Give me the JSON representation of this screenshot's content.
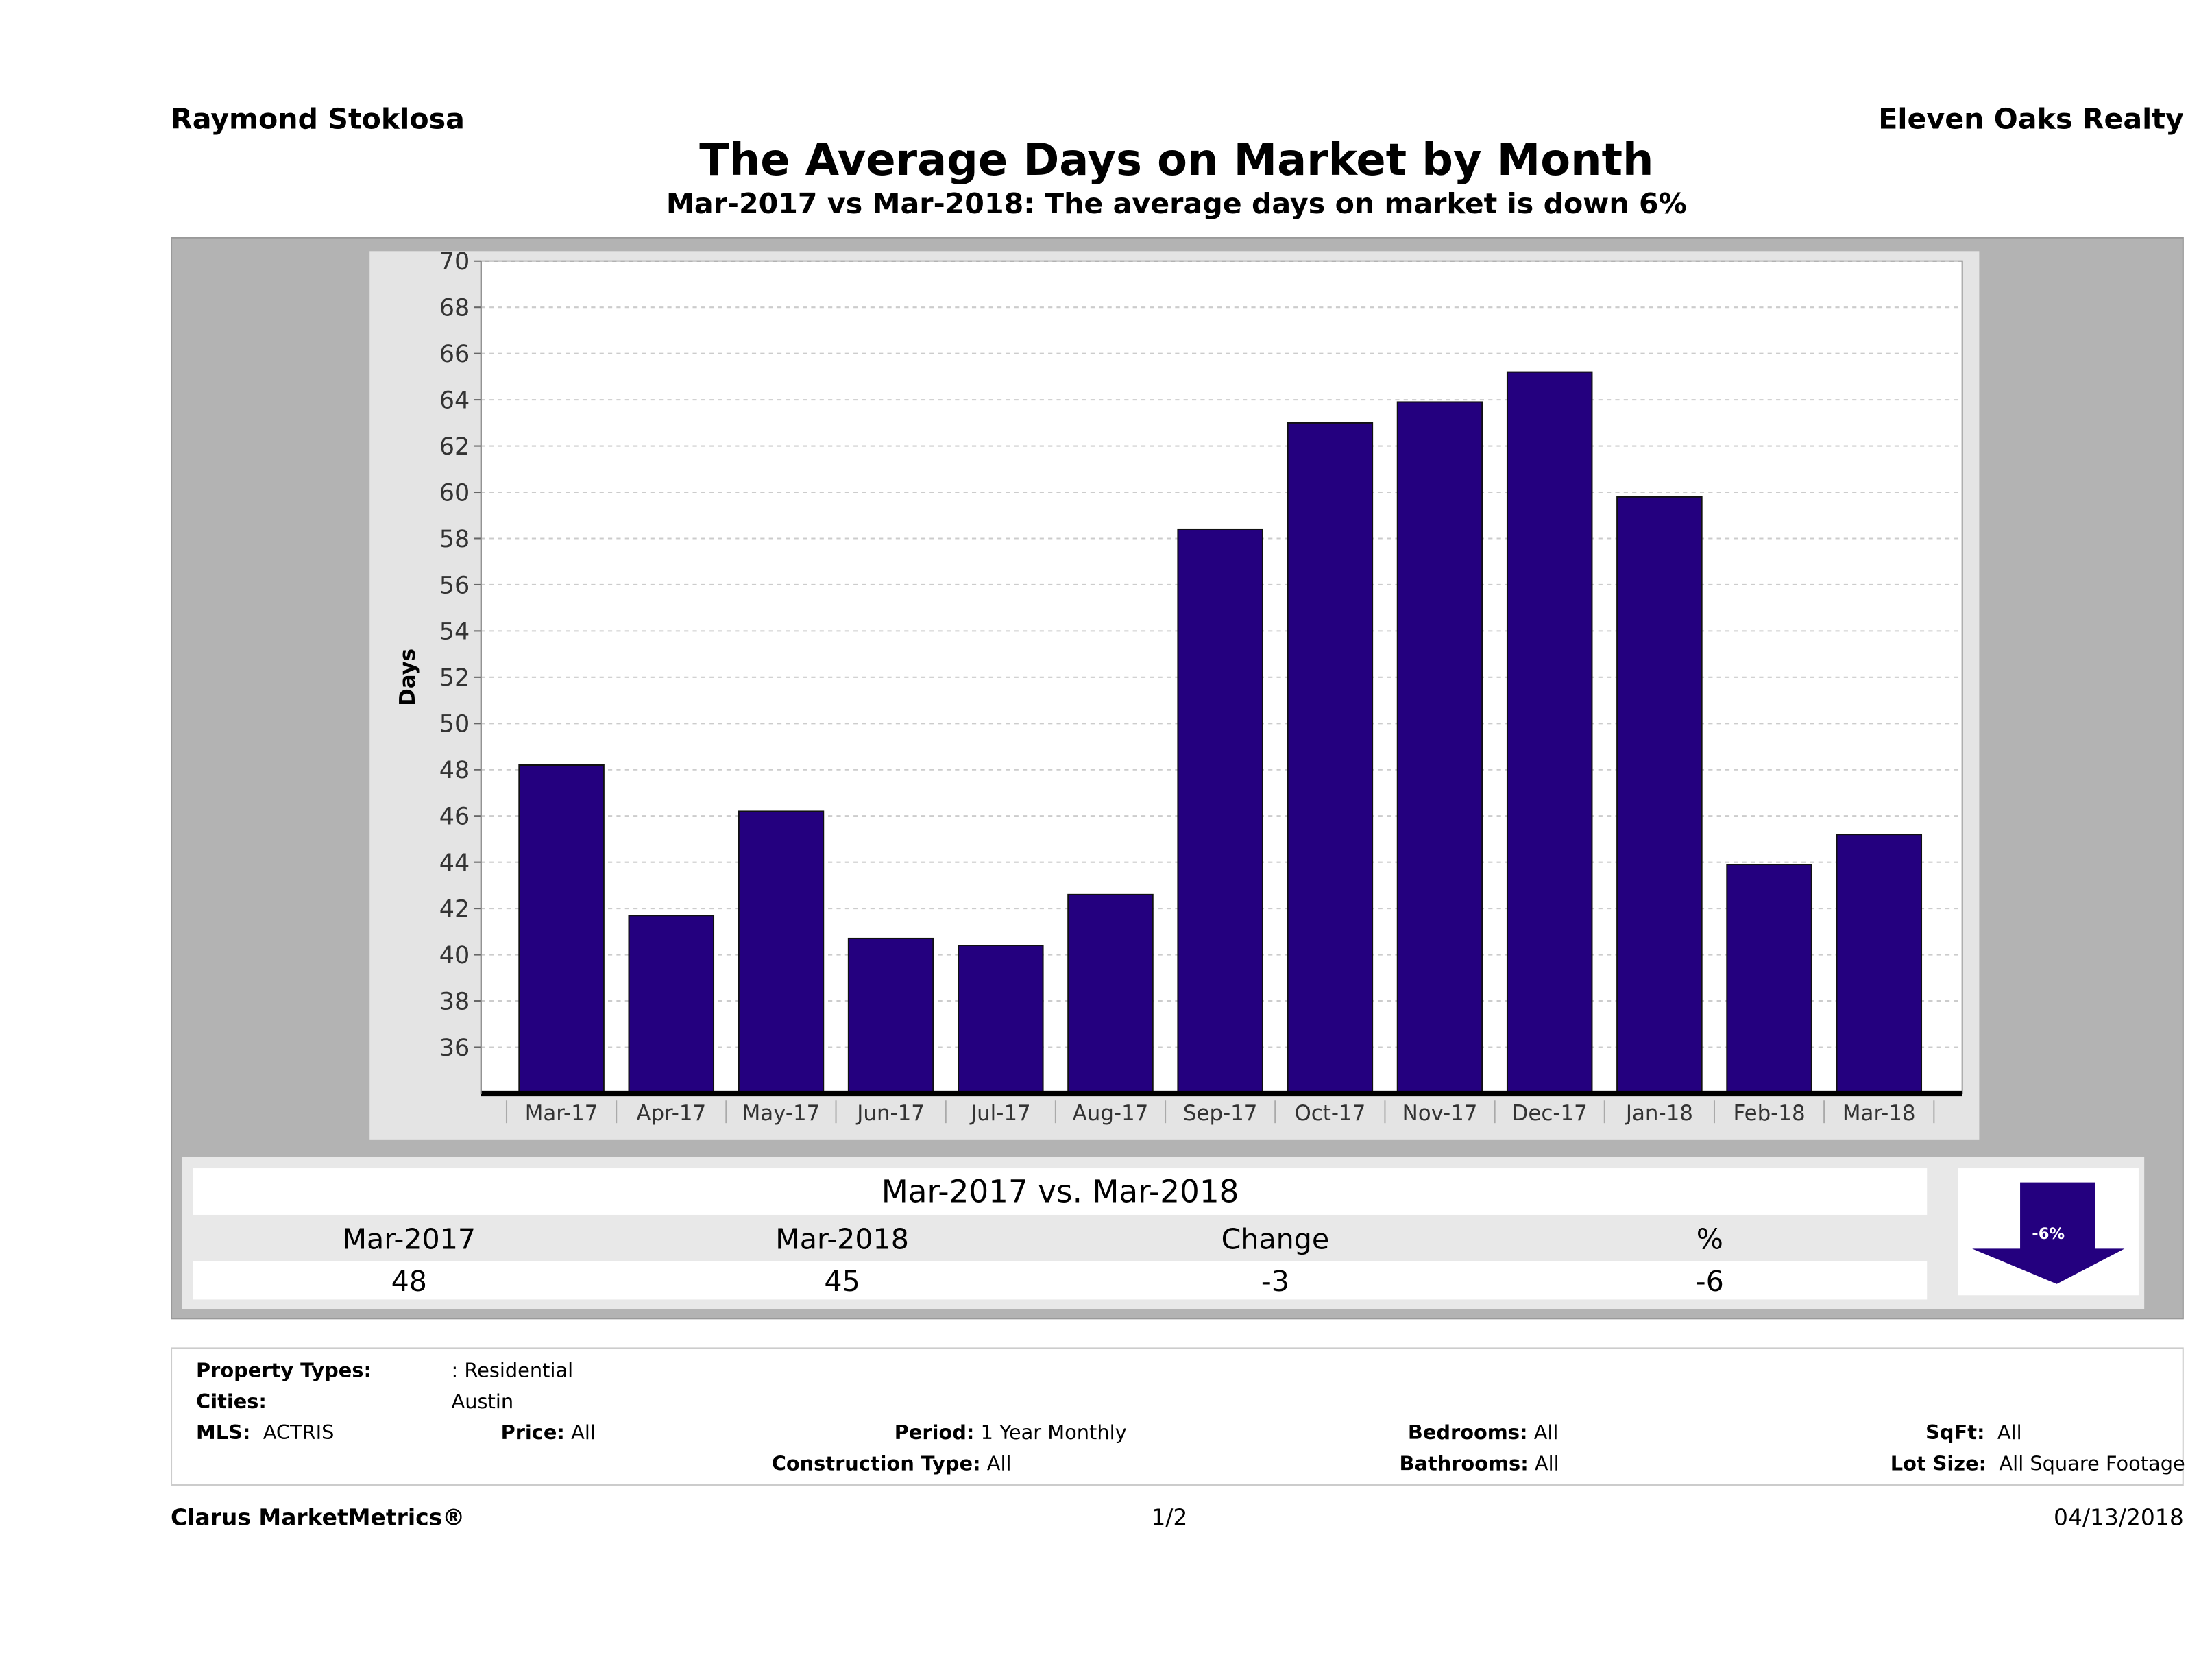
{
  "header": {
    "agent": "Raymond Stoklosa",
    "company": "Eleven Oaks Realty",
    "title": "The Average Days on Market by Month",
    "subtitle": "Mar-2017 vs Mar-2018: The average days on market is down 6%"
  },
  "chart_data": {
    "type": "bar",
    "ylabel": "Days",
    "ylim": [
      34,
      70
    ],
    "yticks": [
      36,
      38,
      40,
      42,
      44,
      46,
      48,
      50,
      52,
      54,
      56,
      58,
      60,
      62,
      64,
      66,
      68,
      70
    ],
    "grid": true,
    "bar_color": "#24007f",
    "categories": [
      "Mar-17",
      "Apr-17",
      "May-17",
      "Jun-17",
      "Jul-17",
      "Aug-17",
      "Sep-17",
      "Oct-17",
      "Nov-17",
      "Dec-17",
      "Jan-18",
      "Feb-18",
      "Mar-18"
    ],
    "values": [
      48.2,
      41.7,
      46.2,
      40.7,
      40.4,
      42.6,
      58.4,
      63.0,
      63.9,
      65.2,
      59.8,
      43.9,
      45.2
    ]
  },
  "summary": {
    "title": "Mar-2017 vs. Mar-2018",
    "headers": [
      "Mar-2017",
      "Mar-2018",
      "Change",
      "%"
    ],
    "values": [
      "48",
      "45",
      "-3",
      "-6"
    ],
    "badge": "-6%",
    "badge_direction": "down"
  },
  "filters": {
    "property_types_label": "Property Types:",
    "property_types": ": Residential",
    "cities_label": "Cities:",
    "cities": "Austin",
    "mls_label": "MLS:",
    "mls": "ACTRIS",
    "price_label": "Price:",
    "price": "All",
    "period_label": "Period:",
    "period": "1 Year Monthly",
    "construction_label": "Construction Type:",
    "construction": "All",
    "bedrooms_label": "Bedrooms:",
    "bedrooms": "All",
    "bathrooms_label": "Bathrooms:",
    "bathrooms": "All",
    "sqft_label": "SqFt:",
    "sqft": "All",
    "lot_label": "Lot Size:",
    "lot": "All Square Footage"
  },
  "footer": {
    "brand": "Clarus MarketMetrics®",
    "page": "1/2",
    "date": "04/13/2018"
  }
}
